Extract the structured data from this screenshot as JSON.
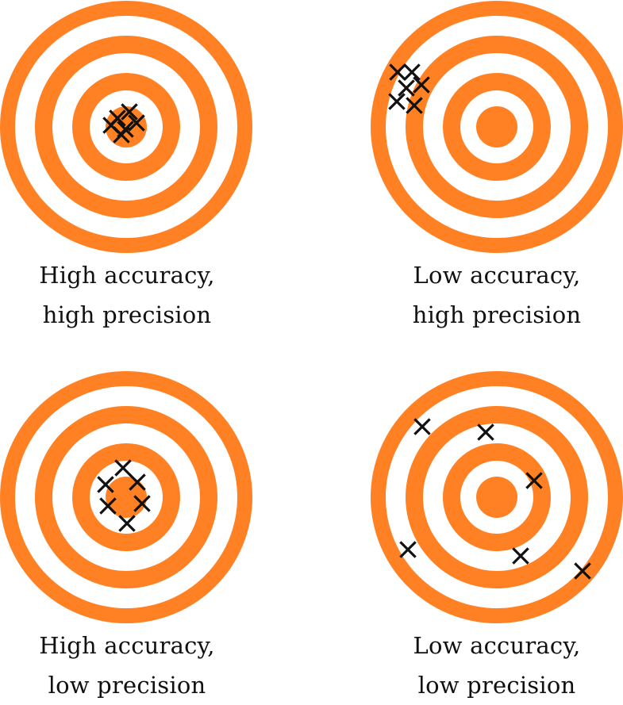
{
  "colors": {
    "ring": "#FF8124",
    "background": "#FFFFFF",
    "marker": "#111111",
    "text": "#111111"
  },
  "icons": {
    "target": "target-icon",
    "marker": "x-mark-icon"
  },
  "panels": [
    {
      "id": "high-accuracy-high-precision",
      "caption_line1": "High accuracy,",
      "caption_line2": "high precision",
      "target_center": [
        159,
        160
      ],
      "marks": [
        [
          148,
          149
        ],
        [
          163,
          141
        ],
        [
          172,
          155
        ],
        [
          140,
          158
        ],
        [
          153,
          170
        ],
        [
          158,
          163
        ]
      ]
    },
    {
      "id": "low-accuracy-high-precision",
      "caption_line1": "Low accuracy,",
      "caption_line2": "high precision",
      "target_center": [
        626,
        160
      ],
      "marks": [
        [
          501,
          91
        ],
        [
          519,
          91
        ],
        [
          512,
          111
        ],
        [
          531,
          107
        ],
        [
          500,
          128
        ],
        [
          522,
          133
        ]
      ]
    },
    {
      "id": "high-accuracy-low-precision",
      "caption_line1": "High accuracy,",
      "caption_line2": "low precision",
      "target_center": [
        159,
        627
      ],
      "marks": [
        [
          155,
          590
        ],
        [
          133,
          611
        ],
        [
          173,
          608
        ],
        [
          136,
          638
        ],
        [
          179,
          635
        ],
        [
          160,
          660
        ]
      ]
    },
    {
      "id": "low-accuracy-low-precision",
      "caption_line1": "Low accuracy,",
      "caption_line2": "low precision",
      "target_center": [
        626,
        627
      ],
      "marks": [
        [
          532,
          538
        ],
        [
          612,
          545
        ],
        [
          673,
          606
        ],
        [
          514,
          693
        ],
        [
          656,
          701
        ],
        [
          734,
          720
        ]
      ]
    }
  ]
}
